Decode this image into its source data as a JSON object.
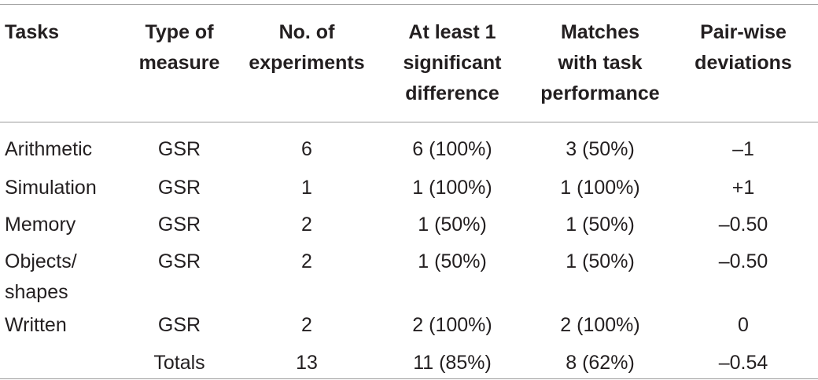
{
  "table": {
    "header": [
      "Tasks",
      "Type of\nmeasure",
      "No. of\nexperiments",
      "At least 1\nsignificant\ndifference",
      "Matches\nwith task\nperformance",
      "Pair-wise\ndeviations"
    ],
    "rows": [
      [
        "Arithmetic",
        "GSR",
        "6",
        "6 (100%)",
        "3 (50%)",
        "–1"
      ],
      [
        "Simulation",
        "GSR",
        "1",
        "1 (100%)",
        "1 (100%)",
        "+1"
      ],
      [
        "Memory",
        "GSR",
        "2",
        "1 (50%)",
        "1 (50%)",
        "–0.50"
      ],
      [
        "Objects/\nshapes",
        "GSR",
        "2",
        "1 (50%)",
        "1 (50%)",
        "–0.50"
      ],
      [
        "Written",
        "GSR",
        "2",
        "2 (100%)",
        "2 (100%)",
        "0"
      ],
      [
        "",
        "Totals",
        "13",
        "11 (85%)",
        "8 (62%)",
        "–0.54"
      ]
    ]
  }
}
